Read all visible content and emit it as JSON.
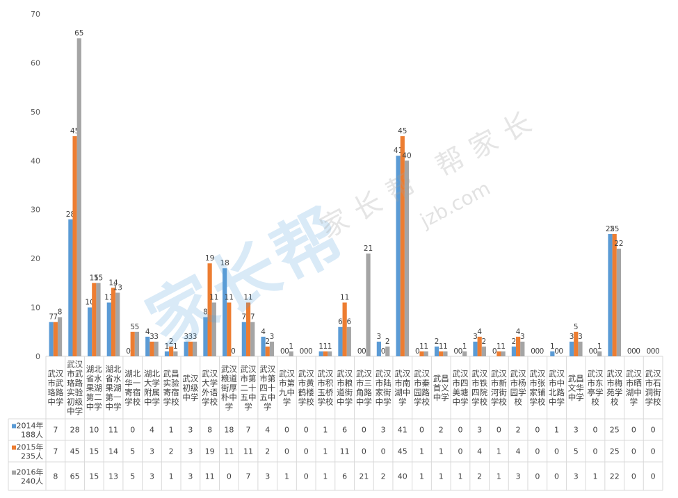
{
  "chart_data": {
    "type": "bar",
    "categories": [
      "武汉市武珞路中学",
      "武汉市武珞路实验初级中学",
      "湖北省水果湖第二中学",
      "湖北省水果湖第一中学",
      "湖北华一寄宿学校",
      "湖北大学附属中学",
      "武昌实验寄宿学校",
      "武汉初级中学",
      "武汉大学外语学校",
      "武汉粮道街厚朴中学",
      "武汉市第二十五中学",
      "武汉市第四十五中学",
      "武汉市第九中学",
      "武汉市黄鹤楼学校",
      "武汉市积玉桥学校",
      "武汉市粮道街中学",
      "武汉市三角路中学",
      "武汉市陆家街中学",
      "武汉市南湖中学",
      "武汉市秦园路学校",
      "武昌首义中学",
      "武汉市四美塘中学",
      "武汉市铁四院学校",
      "武汉市新河街学校",
      "武汉市杨园学校",
      "武汉市张家铺学校",
      "武汉市中北路中学",
      "武昌文华中学",
      "武汉市东亭学校",
      "武汉市梅苑学校",
      "武汉市晒湖中学",
      "武汉市石洞街学校"
    ],
    "series": [
      {
        "name": "2014年\n188人",
        "color": "#5B9BD5",
        "values": [
          7,
          28,
          10,
          11,
          0,
          4,
          1,
          3,
          8,
          18,
          7,
          4,
          0,
          0,
          1,
          6,
          0,
          3,
          41,
          0,
          2,
          0,
          3,
          0,
          2,
          0,
          1,
          3,
          0,
          25,
          0,
          0
        ]
      },
      {
        "name": "2015年\n235人",
        "color": "#ED7D31",
        "values": [
          7,
          45,
          15,
          14,
          5,
          3,
          2,
          3,
          19,
          11,
          11,
          2,
          0,
          0,
          1,
          11,
          0,
          0,
          45,
          1,
          1,
          0,
          4,
          1,
          4,
          0,
          0,
          5,
          0,
          25,
          0,
          0
        ]
      },
      {
        "name": "2016年\n240人",
        "color": "#A5A5A5",
        "values": [
          8,
          65,
          15,
          13,
          5,
          3,
          1,
          3,
          11,
          0,
          7,
          3,
          1,
          0,
          1,
          6,
          21,
          2,
          40,
          1,
          1,
          1,
          2,
          1,
          3,
          0,
          0,
          3,
          1,
          22,
          0,
          0
        ]
      }
    ],
    "yticks": [
      0,
      10,
      20,
      30,
      40,
      50,
      60,
      70
    ],
    "ylim": [
      0,
      70
    ],
    "grid": false,
    "legend": "data-table",
    "title": "",
    "xlabel": "",
    "ylabel": ""
  },
  "watermark": {
    "logo_text": "家长帮",
    "brand_text": "家长帮 帮家长",
    "url_text": "jzb.com"
  }
}
